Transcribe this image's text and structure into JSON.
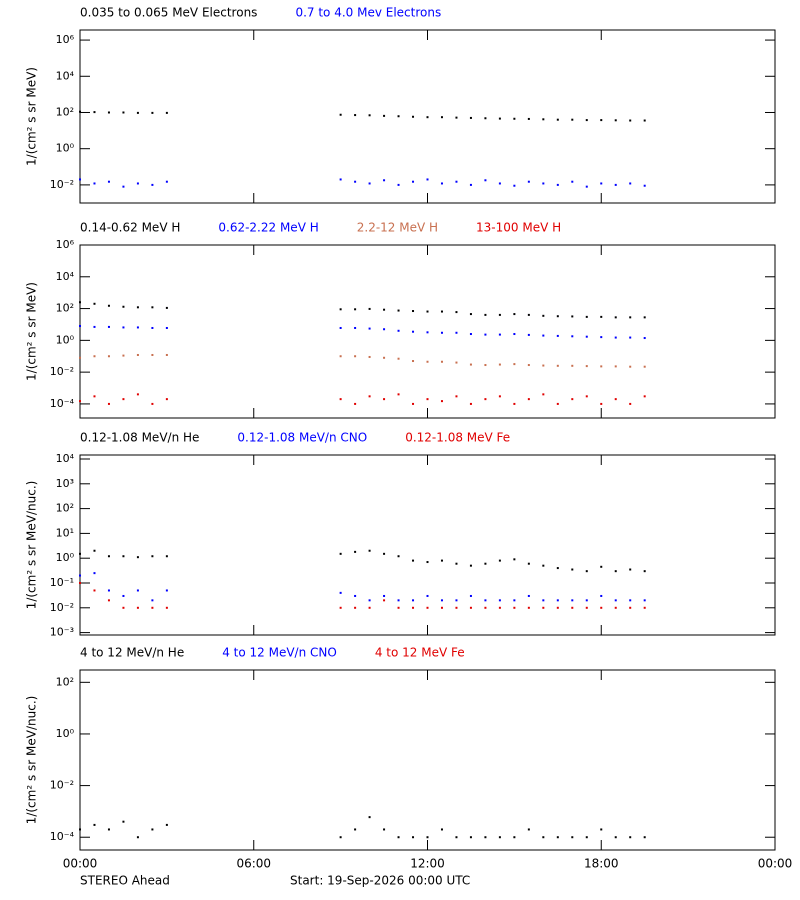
{
  "chart_data": [
    {
      "type": "scatter",
      "log_y": true,
      "ylabel": "1/(cm² s sr MeV)",
      "x": [
        0,
        0.5,
        1,
        1.5,
        2,
        2.5,
        3,
        9,
        9.5,
        10,
        10.5,
        11,
        11.5,
        12,
        12.5,
        13,
        13.5,
        14,
        14.5,
        15,
        15.5,
        16,
        16.5,
        17,
        17.5,
        18,
        18.5,
        19,
        19.5
      ],
      "ylim": [
        0.001,
        3600000
      ],
      "yticks": [
        {
          "value": 0.01,
          "label": "10⁻²"
        },
        {
          "value": 1,
          "label": "10⁰"
        },
        {
          "value": 100,
          "label": "10²"
        },
        {
          "value": 10000,
          "label": "10⁴"
        },
        {
          "value": 1000000,
          "label": "10⁶"
        }
      ],
      "series": [
        {
          "name": "0.035 to 0.065 MeV Electrons",
          "color": "#000000",
          "values": [
            110,
            105,
            100,
            100,
            95,
            95,
            95,
            75,
            72,
            70,
            65,
            62,
            58,
            55,
            55,
            52,
            50,
            48,
            46,
            45,
            44,
            42,
            40,
            40,
            38,
            38,
            37,
            36,
            36
          ]
        },
        {
          "name": "0.7 to 4.0 Mev Electrons",
          "color": "#0000ff",
          "values": [
            0.02,
            0.012,
            0.015,
            0.008,
            0.012,
            0.01,
            0.015,
            0.02,
            0.015,
            0.012,
            0.018,
            0.01,
            0.015,
            0.02,
            0.012,
            0.015,
            0.01,
            0.018,
            0.012,
            0.009,
            0.015,
            0.012,
            0.01,
            0.015,
            0.008,
            0.012,
            0.01,
            0.012,
            0.009
          ]
        }
      ]
    },
    {
      "type": "scatter",
      "log_y": true,
      "ylabel": "1/(cm² s sr MeV)",
      "x": [
        0,
        0.5,
        1,
        1.5,
        2,
        2.5,
        3,
        9,
        9.5,
        10,
        10.5,
        11,
        11.5,
        12,
        12.5,
        13,
        13.5,
        14,
        14.5,
        15,
        15.5,
        16,
        16.5,
        17,
        17.5,
        18,
        18.5,
        19,
        19.5
      ],
      "ylim": [
        1.3e-05,
        1000000
      ],
      "yticks": [
        {
          "value": 0.0001,
          "label": "10⁻⁴"
        },
        {
          "value": 0.01,
          "label": "10⁻²"
        },
        {
          "value": 1,
          "label": "10⁰"
        },
        {
          "value": 100,
          "label": "10²"
        },
        {
          "value": 10000,
          "label": "10⁴"
        },
        {
          "value": 1000000,
          "label": "10⁶"
        }
      ],
      "series": [
        {
          "name": "0.14-0.62 MeV H",
          "color": "#000000",
          "values": [
            250,
            200,
            150,
            130,
            120,
            120,
            110,
            90,
            90,
            95,
            85,
            75,
            70,
            65,
            65,
            60,
            45,
            40,
            40,
            45,
            40,
            35,
            33,
            32,
            30,
            30,
            28,
            28,
            28
          ]
        },
        {
          "name": "0.62-2.22 MeV H",
          "color": "#0000ff",
          "values": [
            8,
            7,
            7,
            6.5,
            6.5,
            6,
            6,
            6,
            6,
            5.5,
            5,
            4,
            3.5,
            3.2,
            3,
            3,
            2.5,
            2.3,
            2.3,
            2.5,
            2.2,
            2,
            1.9,
            1.8,
            1.7,
            1.6,
            1.5,
            1.5,
            1.4
          ]
        },
        {
          "name": "2.2-12 MeV H",
          "color": "#c87050",
          "values": [
            0.08,
            0.1,
            0.1,
            0.11,
            0.12,
            0.12,
            0.12,
            0.1,
            0.1,
            0.09,
            0.08,
            0.07,
            0.05,
            0.045,
            0.045,
            0.04,
            0.03,
            0.028,
            0.03,
            0.032,
            0.028,
            0.026,
            0.025,
            0.025,
            0.024,
            0.023,
            0.023,
            0.022,
            0.022
          ]
        },
        {
          "name": "13-100 MeV H",
          "color": "#e00000",
          "values": [
            0.00015,
            0.0003,
            0.0001,
            0.0002,
            0.0004,
            0.0001,
            0.0002,
            0.0002,
            0.0001,
            0.0003,
            0.0002,
            0.0004,
            0.0001,
            0.0002,
            0.00015,
            0.0003,
            0.0001,
            0.0002,
            0.0003,
            0.0001,
            0.0002,
            0.0004,
            0.0001,
            0.0002,
            0.0003,
            0.0001,
            0.0002,
            0.0001,
            0.0003
          ]
        }
      ]
    },
    {
      "type": "scatter",
      "log_y": true,
      "ylabel": "1/(cm² s sr MeV/nuc.)",
      "x": [
        0,
        0.5,
        1,
        1.5,
        2,
        2.5,
        3,
        9,
        9.5,
        10,
        10.5,
        11,
        11.5,
        12,
        12.5,
        13,
        13.5,
        14,
        14.5,
        15,
        15.5,
        16,
        16.5,
        17,
        17.5,
        18,
        18.5,
        19,
        19.5
      ],
      "ylim": [
        0.0008,
        14500
      ],
      "yticks": [
        {
          "value": 0.001,
          "label": "10⁻³"
        },
        {
          "value": 0.01,
          "label": "10⁻²"
        },
        {
          "value": 0.1,
          "label": "10⁻¹"
        },
        {
          "value": 1,
          "label": "10⁰"
        },
        {
          "value": 10,
          "label": "10¹"
        },
        {
          "value": 100,
          "label": "10²"
        },
        {
          "value": 1000,
          "label": "10³"
        },
        {
          "value": 10000,
          "label": "10⁴"
        }
      ],
      "series": [
        {
          "name": "0.12-1.08 MeV/n He",
          "color": "#000000",
          "values": [
            1.5,
            2,
            1.2,
            1.2,
            1.1,
            1.2,
            1.2,
            1.5,
            1.8,
            2,
            1.5,
            1.2,
            0.8,
            0.7,
            0.8,
            0.6,
            0.5,
            0.6,
            0.8,
            0.9,
            0.6,
            0.5,
            0.4,
            0.35,
            0.3,
            0.45,
            0.3,
            0.35,
            0.3
          ]
        },
        {
          "name": "0.12-1.08 MeV/n CNO",
          "color": "#0000ff",
          "values": [
            0.2,
            0.25,
            0.05,
            0.03,
            0.05,
            0.02,
            0.05,
            0.04,
            0.03,
            0.02,
            0.03,
            0.02,
            0.02,
            0.03,
            0.02,
            0.02,
            0.03,
            0.02,
            0.02,
            0.02,
            0.03,
            0.02,
            0.02,
            0.02,
            0.02,
            0.03,
            0.02,
            0.02,
            0.02
          ]
        },
        {
          "name": "0.12-1.08 MeV Fe",
          "color": "#e00000",
          "values": [
            0.1,
            0.05,
            0.02,
            0.01,
            0.01,
            0.01,
            0.01,
            0.01,
            0.01,
            0.01,
            0.02,
            0.01,
            0.01,
            0.01,
            0.01,
            0.01,
            0.01,
            0.01,
            0.01,
            0.01,
            0.01,
            0.01,
            0.01,
            0.01,
            0.01,
            0.01,
            0.01,
            0.01,
            0.01
          ]
        }
      ]
    },
    {
      "type": "scatter",
      "log_y": true,
      "ylabel": "1/(cm² s sr MeV/nuc.)",
      "x": [
        0,
        0.5,
        1,
        1.5,
        2,
        2.5,
        3,
        9,
        9.5,
        10,
        10.5,
        11,
        11.5,
        12,
        12.5,
        13,
        13.5,
        14,
        14.5,
        15,
        15.5,
        16,
        16.5,
        17,
        17.5,
        18,
        18.5,
        19,
        19.5
      ],
      "xlim": [
        0,
        24
      ],
      "xticks": [
        {
          "value": 0,
          "label": "00:00"
        },
        {
          "value": 6,
          "label": "06:00"
        },
        {
          "value": 12,
          "label": "12:00"
        },
        {
          "value": 18,
          "label": "18:00"
        },
        {
          "value": 24,
          "label": "00:00"
        }
      ],
      "ylim": [
        3.2e-05,
        300
      ],
      "yticks": [
        {
          "value": 0.0001,
          "label": "10⁻⁴"
        },
        {
          "value": 0.01,
          "label": "10⁻²"
        },
        {
          "value": 1,
          "label": "10⁰"
        },
        {
          "value": 100,
          "label": "10²"
        }
      ],
      "series": [
        {
          "name": "4 to 12 MeV/n He",
          "color": "#000000",
          "values": [
            0.0002,
            0.0003,
            0.0002,
            0.0004,
            0.0001,
            0.0002,
            0.0003,
            0.0001,
            0.0002,
            0.0006,
            0.0002,
            0.0001,
            0.0001,
            0.0001,
            0.0002,
            0.0001,
            0.0001,
            0.0001,
            0.0001,
            0.0001,
            0.0002,
            0.0001,
            0.0001,
            0.0001,
            0.0001,
            0.0002,
            0.0001,
            0.0001,
            0.0001
          ]
        },
        {
          "name": "4 to 12 MeV/n CNO",
          "color": "#0000ff",
          "values": [
            null,
            null,
            null,
            null,
            null,
            null,
            null,
            null,
            null,
            null,
            null,
            null,
            null,
            null,
            null,
            null,
            null,
            null,
            null,
            null,
            null,
            null,
            null,
            null,
            null,
            null,
            null,
            null,
            null
          ]
        },
        {
          "name": "4 to 12 MeV Fe",
          "color": "#e00000",
          "values": [
            null,
            null,
            null,
            null,
            null,
            null,
            null,
            null,
            null,
            null,
            null,
            null,
            null,
            null,
            null,
            null,
            null,
            null,
            null,
            null,
            null,
            null,
            null,
            null,
            null,
            null,
            null,
            null,
            null
          ]
        }
      ]
    }
  ],
  "footer": {
    "left": "STEREO Ahead",
    "center": "Start: 19-Sep-2026 00:00 UTC"
  }
}
